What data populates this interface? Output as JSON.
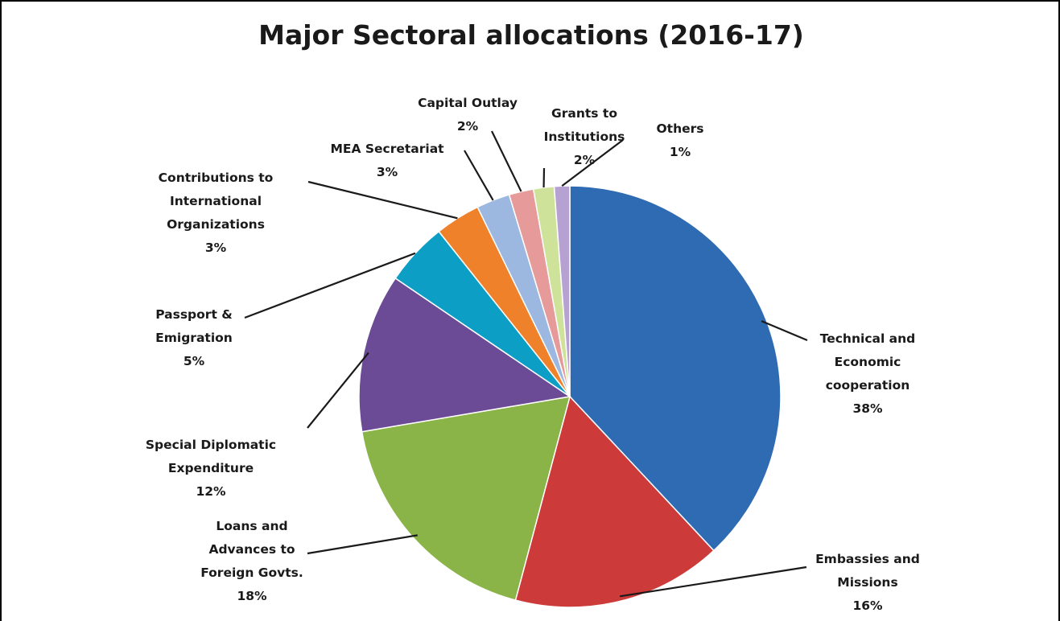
{
  "chart_data": {
    "type": "pie",
    "title": "Major Sectoral allocations (2016-17)",
    "start_angle_deg": 0,
    "direction": "clockwise",
    "slices": [
      {
        "label": [
          "Technical and",
          "Economic",
          "cooperation"
        ],
        "pct_label": "38%",
        "value": 38.5,
        "color": "#2e6bb3"
      },
      {
        "label": [
          "Embassies and",
          "Missions"
        ],
        "pct_label": "16%",
        "value": 16.3,
        "color": "#cc3a3a"
      },
      {
        "label": [
          "Loans and",
          "Advances to",
          "Foreign Govts."
        ],
        "pct_label": "18%",
        "value": 18.4,
        "color": "#8ab348"
      },
      {
        "label": [
          "Special Diplomatic",
          "Expenditure"
        ],
        "pct_label": "12%",
        "value": 12.3,
        "color": "#6b4a96"
      },
      {
        "label": [
          "Passport &",
          "Emigration"
        ],
        "pct_label": "5%",
        "value": 4.9,
        "color": "#0d9ec5"
      },
      {
        "label": [
          "Contributions to",
          "International",
          "Organizations"
        ],
        "pct_label": "3%",
        "value": 3.5,
        "color": "#f0812b"
      },
      {
        "label": [
          "MEA Secretariat"
        ],
        "pct_label": "3%",
        "value": 2.6,
        "color": "#9db8e0"
      },
      {
        "label": [
          "Capital Outlay"
        ],
        "pct_label": "2%",
        "value": 1.9,
        "color": "#e69a9a"
      },
      {
        "label": [
          "Grants to",
          "Institutions"
        ],
        "pct_label": "2%",
        "value": 1.6,
        "color": "#cfe29a"
      },
      {
        "label": [
          "Others"
        ],
        "pct_label": "1%",
        "value": 1.2,
        "color": "#b6a2d2"
      }
    ]
  }
}
